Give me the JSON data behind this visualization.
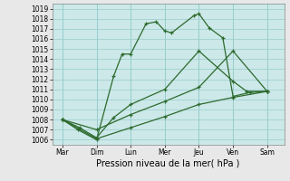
{
  "xlabel": "Pression niveau de la mer( hPa )",
  "x_labels": [
    "Mar",
    "Dim",
    "Lun",
    "Mer",
    "Jeu",
    "Ven",
    "Sam"
  ],
  "x_positions": [
    0,
    1,
    2,
    3,
    4,
    5,
    6
  ],
  "ylim": [
    1005.5,
    1019.5
  ],
  "yticks": [
    1006,
    1007,
    1008,
    1009,
    1010,
    1011,
    1012,
    1013,
    1014,
    1015,
    1016,
    1017,
    1018,
    1019
  ],
  "line1_x": [
    0,
    0.45,
    1.0,
    1.5,
    1.75,
    2.0,
    2.45,
    2.75,
    3.0,
    3.2,
    3.85,
    4.0,
    4.3,
    4.7,
    5.0,
    5.5,
    6.0
  ],
  "line1_y": [
    1008.0,
    1007.0,
    1006.0,
    1012.3,
    1014.5,
    1014.5,
    1017.5,
    1017.7,
    1016.8,
    1016.6,
    1018.3,
    1018.5,
    1017.1,
    1016.1,
    1010.3,
    1010.7,
    1010.8
  ],
  "line2_x": [
    0,
    1.0,
    2.0,
    3.0,
    4.0,
    5.0,
    6.0
  ],
  "line2_y": [
    1008.0,
    1007.0,
    1008.5,
    1009.8,
    1011.2,
    1014.8,
    1010.8
  ],
  "line3_x": [
    0,
    1.0,
    2.0,
    3.0,
    4.0,
    5.0,
    6.0
  ],
  "line3_y": [
    1008.0,
    1006.1,
    1007.2,
    1008.3,
    1009.5,
    1010.2,
    1010.8
  ],
  "line4_x": [
    0,
    0.5,
    1.0,
    1.5,
    2.0,
    3.0,
    4.0,
    5.0,
    5.4,
    6.0
  ],
  "line4_y": [
    1008.0,
    1007.2,
    1006.2,
    1008.2,
    1009.5,
    1011.0,
    1014.8,
    1011.8,
    1010.8,
    1010.8
  ],
  "line_color": "#2d6a2d",
  "bg_color": "#cce8e8",
  "grid_color": "#99cccc",
  "fig_bg": "#e8e8e8",
  "tick_fontsize": 5.5,
  "xlabel_fontsize": 7.0
}
